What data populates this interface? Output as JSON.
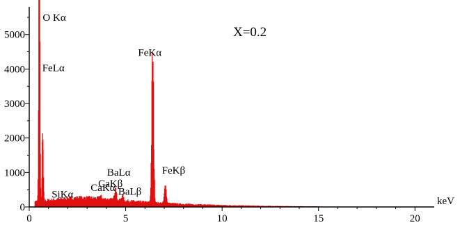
{
  "chart_data": {
    "type": "line",
    "title": "",
    "xlabel": "keV",
    "ylabel": "",
    "xlim": [
      0,
      21
    ],
    "ylim": [
      0,
      5800
    ],
    "x_ticks": [
      0,
      5,
      10,
      15,
      20
    ],
    "y_ticks": [
      0,
      1000,
      2000,
      3000,
      4000,
      5000
    ],
    "grid": false,
    "annotation": "X=0.2",
    "series_color": "#e01010",
    "peak_points": [
      {
        "x": 0.52,
        "y": 5620
      },
      {
        "x": 0.53,
        "y": 4060
      },
      {
        "x": 0.7,
        "y": 1950
      },
      {
        "x": 1.74,
        "y": 190
      },
      {
        "x": 3.69,
        "y": 320
      },
      {
        "x": 4.47,
        "y": 560
      },
      {
        "x": 4.83,
        "y": 330
      },
      {
        "x": 6.4,
        "y": 4180
      },
      {
        "x": 7.06,
        "y": 620
      }
    ],
    "peak_labels": [
      {
        "text": "O Kα",
        "x": 0.52,
        "y": 5620
      },
      {
        "text": "FeLα",
        "x": 0.53,
        "y": 4060
      },
      {
        "text": "FeKα",
        "x": 6.4,
        "y": 4180
      },
      {
        "text": "SiKα",
        "x": 1.74,
        "y": 190
      },
      {
        "text": "CaKα",
        "x": 3.69,
        "y": 320
      },
      {
        "text": "CaKβ",
        "x": 4.01,
        "y": 380
      },
      {
        "text": "BaLα",
        "x": 4.47,
        "y": 560
      },
      {
        "text": "BaLβ",
        "x": 4.83,
        "y": 330
      },
      {
        "text": "FeKβ",
        "x": 7.06,
        "y": 620
      }
    ]
  }
}
